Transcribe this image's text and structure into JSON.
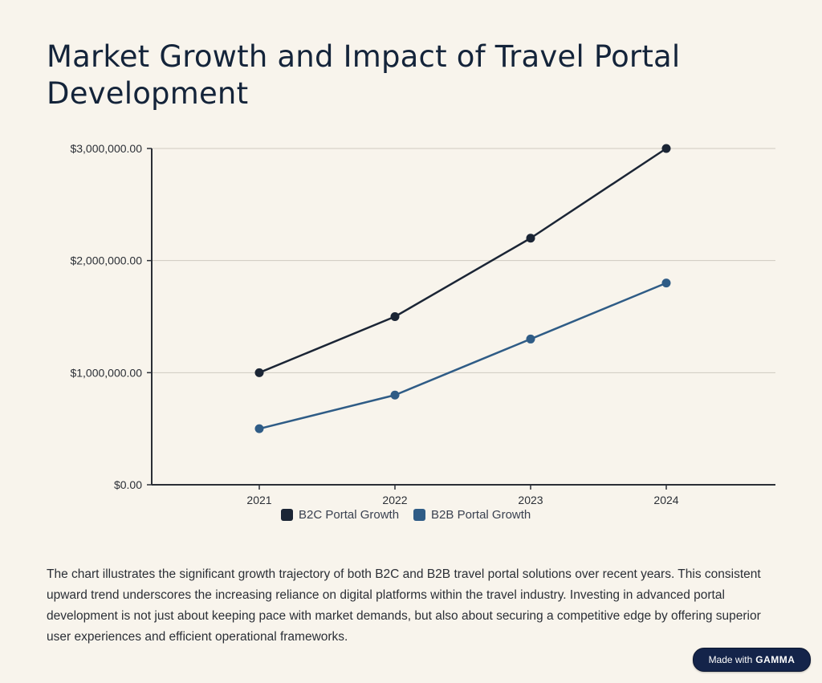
{
  "page": {
    "title": "Market Growth and Impact of Travel Portal Development",
    "description": "The chart illustrates the significant growth trajectory of both B2C and B2B travel portal solutions over recent years. This consistent upward trend underscores the increasing reliance on digital platforms within the travel industry. Investing in advanced portal development is not just about keeping pace with market demands, but also about securing a competitive edge by offering superior user experiences and efficient operational frameworks.",
    "badge_prefix": "Made with",
    "badge_brand": "GAMMA"
  },
  "colors": {
    "background": "#f8f4ec",
    "title": "#14243a",
    "b2c": "#1b2535",
    "b2b": "#2f5c86",
    "grid": "#cfcac0",
    "axis": "#2b2f36"
  },
  "chart_data": {
    "type": "line",
    "categories": [
      "2021",
      "2022",
      "2023",
      "2024"
    ],
    "series": [
      {
        "name": "B2C Portal Growth",
        "values": [
          1000000,
          1500000,
          2200000,
          3000000
        ],
        "color": "#1b2535"
      },
      {
        "name": "B2B Portal Growth",
        "values": [
          500000,
          800000,
          1300000,
          1800000
        ],
        "color": "#2f5c86"
      }
    ],
    "y_ticks": [
      0,
      1000000,
      2000000,
      3000000
    ],
    "y_tick_labels": [
      "$0.00",
      "$1,000,000.00",
      "$2,000,000.00",
      "$3,000,000.00"
    ],
    "ylim": [
      0,
      3000000
    ],
    "grid": true,
    "legend": "bottom",
    "title": "",
    "xlabel": "",
    "ylabel": ""
  }
}
